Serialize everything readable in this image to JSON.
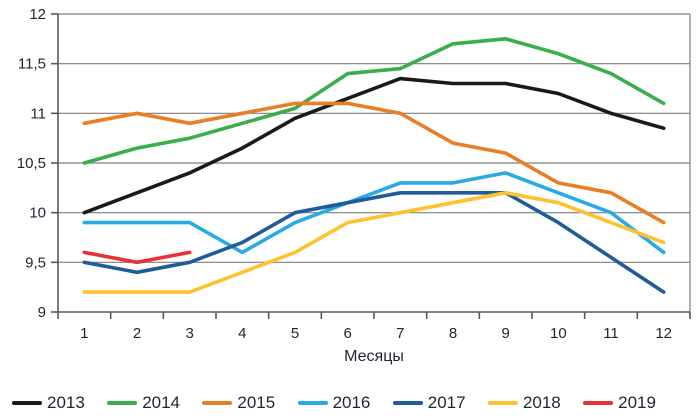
{
  "chart_data": {
    "type": "line",
    "title": "",
    "xlabel": "Месяцы",
    "ylabel": "",
    "x_tick_labels": [
      "1",
      "2",
      "3",
      "4",
      "5",
      "6",
      "7",
      "8",
      "9",
      "10",
      "11",
      "12"
    ],
    "y_ticks": [
      9,
      9.5,
      10,
      10.5,
      11,
      11.5,
      12
    ],
    "y_tick_labels": [
      "9",
      "9,5",
      "10",
      "10,5",
      "11",
      "11,5",
      "12"
    ],
    "ylim": [
      9,
      12
    ],
    "grid": true,
    "legend_position": "bottom",
    "series": [
      {
        "name": "2013",
        "color": "#1a1a1a",
        "values": [
          10.0,
          10.2,
          10.4,
          10.65,
          10.95,
          11.15,
          11.35,
          11.3,
          11.3,
          11.2,
          11.0,
          10.85
        ]
      },
      {
        "name": "2014",
        "color": "#3aae49",
        "values": [
          10.5,
          10.65,
          10.75,
          10.9,
          11.05,
          11.4,
          11.45,
          11.7,
          11.75,
          11.6,
          11.4,
          11.1
        ]
      },
      {
        "name": "2015",
        "color": "#e87e26",
        "values": [
          10.9,
          11.0,
          10.9,
          11.0,
          11.1,
          11.1,
          11.0,
          10.7,
          10.6,
          10.3,
          10.2,
          9.9
        ]
      },
      {
        "name": "2016",
        "color": "#29abe2",
        "values": [
          9.9,
          9.9,
          9.9,
          9.6,
          9.9,
          10.1,
          10.3,
          10.3,
          10.4,
          10.2,
          10.0,
          9.6
        ]
      },
      {
        "name": "2017",
        "color": "#1f5c99",
        "values": [
          9.5,
          9.4,
          9.5,
          9.7,
          10.0,
          10.1,
          10.2,
          10.2,
          10.2,
          9.9,
          9.55,
          9.2
        ]
      },
      {
        "name": "2018",
        "color": "#fdc22d",
        "values": [
          9.2,
          9.2,
          9.2,
          9.4,
          9.6,
          9.9,
          10.0,
          10.1,
          10.2,
          10.1,
          9.9,
          9.7
        ]
      },
      {
        "name": "2019",
        "color": "#e73137",
        "values": [
          9.6,
          9.5,
          9.6,
          null,
          null,
          null,
          null,
          null,
          null,
          null,
          null,
          null
        ]
      }
    ],
    "axis_color": "#595959",
    "grid_color": "#7f7f7f"
  }
}
